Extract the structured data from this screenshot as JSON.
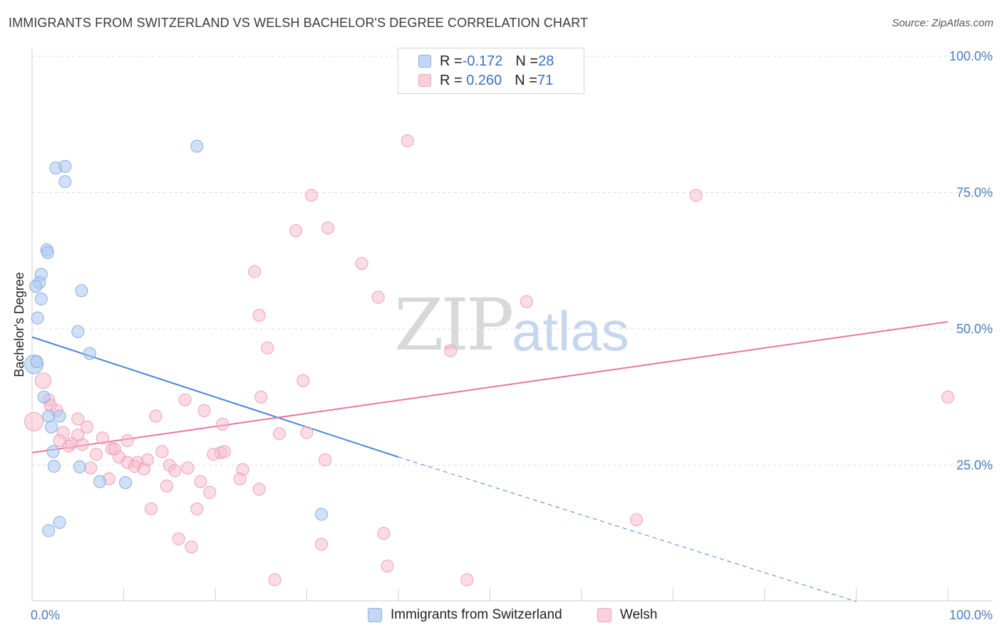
{
  "header": {
    "title": "IMMIGRANTS FROM SWITZERLAND VS WELSH BACHELOR'S DEGREE CORRELATION CHART",
    "source": "Source: ZipAtlas.com"
  },
  "watermark": {
    "zip": "ZIP",
    "atlas": "atlas"
  },
  "legend": {
    "rows": [
      {
        "r_label": "R = ",
        "r_value": "-0.172",
        "n_label": "N = ",
        "n_value": "28",
        "color": "#a9c8f0"
      },
      {
        "r_label": "R = ",
        "r_value": " 0.260",
        "n_label": "N = ",
        "n_value": "71",
        "color": "#f7b9cc"
      }
    ]
  },
  "bottom_legend": [
    {
      "label": "Immigrants from Switzerland",
      "color": "#a9c8f0"
    },
    {
      "label": "Welsh",
      "color": "#f7b9cc"
    }
  ],
  "chart_data": {
    "type": "scatter",
    "ylabel": "Bachelor's Degree",
    "xlabel": "",
    "xlim": [
      0,
      100
    ],
    "ylim": [
      0,
      100
    ],
    "x_tick_labels": [
      "0.0%",
      "100.0%"
    ],
    "y_tick_labels": [
      "100.0%",
      "75.0%",
      "50.0%",
      "25.0%"
    ],
    "y_tick_values": [
      100,
      75,
      50,
      25
    ],
    "grid": "horizontal dashed",
    "colors": {
      "switzerland": "#4a86d6",
      "welsh": "#e8779d"
    },
    "series": [
      {
        "name": "Immigrants from Switzerland",
        "trend": {
          "x0": 0,
          "y0": 48.5,
          "x1": 40,
          "y1": 26.5,
          "dashed_to_x": 90,
          "dashed_to_y": 0
        },
        "points": [
          [
            2.6,
            79.5
          ],
          [
            3.6,
            79.8
          ],
          [
            3.6,
            77.0
          ],
          [
            18.0,
            83.5
          ],
          [
            1.6,
            64.5
          ],
          [
            1.7,
            64.0
          ],
          [
            1.0,
            60.0
          ],
          [
            0.8,
            58.5
          ],
          [
            0.4,
            57.8
          ],
          [
            5.4,
            57.0
          ],
          [
            1.0,
            55.5
          ],
          [
            0.6,
            52.0
          ],
          [
            5.0,
            49.5
          ],
          [
            6.3,
            45.5
          ],
          [
            0.2,
            43.5
          ],
          [
            1.3,
            37.5
          ],
          [
            1.8,
            34.0
          ],
          [
            3.0,
            34.0
          ],
          [
            2.1,
            32.0
          ],
          [
            2.3,
            27.5
          ],
          [
            2.4,
            24.8
          ],
          [
            5.2,
            24.7
          ],
          [
            7.4,
            22.0
          ],
          [
            10.2,
            21.8
          ],
          [
            3.0,
            14.5
          ],
          [
            1.8,
            13.0
          ],
          [
            31.6,
            16.0
          ],
          [
            0.5,
            44.0
          ]
        ]
      },
      {
        "name": "Welsh",
        "trend": {
          "x0": 0,
          "y0": 27.3,
          "x1": 100,
          "y1": 51.3
        },
        "points": [
          [
            41.0,
            84.5
          ],
          [
            30.5,
            74.5
          ],
          [
            32.3,
            68.5
          ],
          [
            28.8,
            68.0
          ],
          [
            72.5,
            74.5
          ],
          [
            36.0,
            62.0
          ],
          [
            24.3,
            60.5
          ],
          [
            37.8,
            55.8
          ],
          [
            54.0,
            55.0
          ],
          [
            24.8,
            52.5
          ],
          [
            25.7,
            46.5
          ],
          [
            45.7,
            46.0
          ],
          [
            29.6,
            40.5
          ],
          [
            1.2,
            40.5
          ],
          [
            25.0,
            37.5
          ],
          [
            100.0,
            37.5
          ],
          [
            1.8,
            37.0
          ],
          [
            16.7,
            37.0
          ],
          [
            2.0,
            36.0
          ],
          [
            2.7,
            35.0
          ],
          [
            18.8,
            35.0
          ],
          [
            13.5,
            34.0
          ],
          [
            5.0,
            33.5
          ],
          [
            20.8,
            32.5
          ],
          [
            6.0,
            32.0
          ],
          [
            3.4,
            31.0
          ],
          [
            0.2,
            33.0
          ],
          [
            30.0,
            31.0
          ],
          [
            27.0,
            30.8
          ],
          [
            7.7,
            30.0
          ],
          [
            10.4,
            29.5
          ],
          [
            4.3,
            29.0
          ],
          [
            5.5,
            28.8
          ],
          [
            4.0,
            28.5
          ],
          [
            8.7,
            28.0
          ],
          [
            14.2,
            27.5
          ],
          [
            20.6,
            27.3
          ],
          [
            19.8,
            27.0
          ],
          [
            7.0,
            27.0
          ],
          [
            9.5,
            26.5
          ],
          [
            32.0,
            26.0
          ],
          [
            11.5,
            25.5
          ],
          [
            10.4,
            25.5
          ],
          [
            11.2,
            24.8
          ],
          [
            15.0,
            25.0
          ],
          [
            12.2,
            24.3
          ],
          [
            23.0,
            24.2
          ],
          [
            15.6,
            24.0
          ],
          [
            6.4,
            24.5
          ],
          [
            8.4,
            22.5
          ],
          [
            18.4,
            22.0
          ],
          [
            22.7,
            22.5
          ],
          [
            14.7,
            21.2
          ],
          [
            24.8,
            20.6
          ],
          [
            19.4,
            20.0
          ],
          [
            13.0,
            17.0
          ],
          [
            18.0,
            17.0
          ],
          [
            66.0,
            15.0
          ],
          [
            38.4,
            12.5
          ],
          [
            16.0,
            11.5
          ],
          [
            17.4,
            10.0
          ],
          [
            31.6,
            10.5
          ],
          [
            38.8,
            6.5
          ],
          [
            26.5,
            4.0
          ],
          [
            47.5,
            4.0
          ],
          [
            5.0,
            30.5
          ],
          [
            3.0,
            29.5
          ],
          [
            9.0,
            28.0
          ],
          [
            12.6,
            26.0
          ],
          [
            21.0,
            27.5
          ],
          [
            17.0,
            24.5
          ]
        ]
      }
    ]
  }
}
